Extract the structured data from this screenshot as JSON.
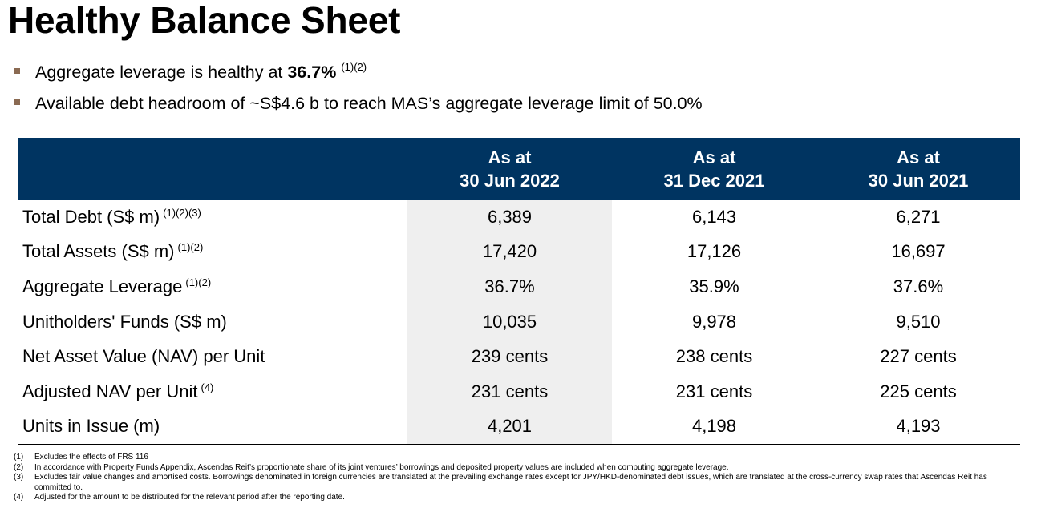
{
  "title": "Healthy Balance Sheet",
  "bullets": [
    {
      "text_before": "Aggregate leverage is healthy at ",
      "bold": "36.7%",
      "text_after": "",
      "sup": "(1)(2)"
    },
    {
      "text_before": "Available debt headroom of ~S$4.6 b to reach MAS’s aggregate leverage limit of 50.0%",
      "bold": "",
      "text_after": "",
      "sup": ""
    }
  ],
  "table": {
    "headers": [
      {
        "line1": "As at",
        "line2": "30 Jun 2022"
      },
      {
        "line1": "As at",
        "line2": "31 Dec 2021"
      },
      {
        "line1": "As at",
        "line2": "30 Jun 2021"
      }
    ],
    "rows": [
      {
        "label": "Total Debt (S$ m)",
        "sup": "(1)(2)(3)",
        "values": [
          "6,389",
          "6,143",
          "6,271"
        ]
      },
      {
        "label": "Total Assets (S$ m)",
        "sup": "(1)(2)",
        "values": [
          "17,420",
          "17,126",
          "16,697"
        ]
      },
      {
        "label": "Aggregate Leverage",
        "sup": "(1)(2)",
        "values": [
          "36.7%",
          "35.9%",
          "37.6%"
        ]
      },
      {
        "label": "Unitholders' Funds (S$ m)",
        "sup": "",
        "values": [
          "10,035",
          "9,978",
          "9,510"
        ]
      },
      {
        "label": "Net Asset Value (NAV) per Unit",
        "sup": "",
        "values": [
          "239 cents",
          "238 cents",
          "227 cents"
        ]
      },
      {
        "label": "Adjusted NAV per Unit",
        "sup": "(4)",
        "values": [
          "231 cents",
          "231 cents",
          "225 cents"
        ]
      },
      {
        "label": "Units in Issue (m)",
        "sup": "",
        "values": [
          "4,201",
          "4,198",
          "4,193"
        ]
      }
    ]
  },
  "notes": [
    {
      "num": "(1)",
      "text": "Excludes the effects of FRS 116"
    },
    {
      "num": "(2)",
      "text": "In accordance with Property Funds Appendix, Ascendas Reit’s proportionate share of its joint ventures’ borrowings and deposited property values are included when computing aggregate leverage."
    },
    {
      "num": "(3)",
      "text": "Excludes fair value changes and amortised costs. Borrowings denominated in foreign currencies are translated at the prevailing exchange rates except for JPY/HKD-denominated debt issues, which are translated at the cross-currency swap rates that Ascendas Reit has committed to."
    },
    {
      "num": "(4)",
      "text": "Adjusted for the amount to be distributed for the relevant period after the reporting date."
    }
  ],
  "colors": {
    "header_bg": "#003461",
    "highlight_col": "#efefef",
    "bullet": "#8a6a52"
  }
}
